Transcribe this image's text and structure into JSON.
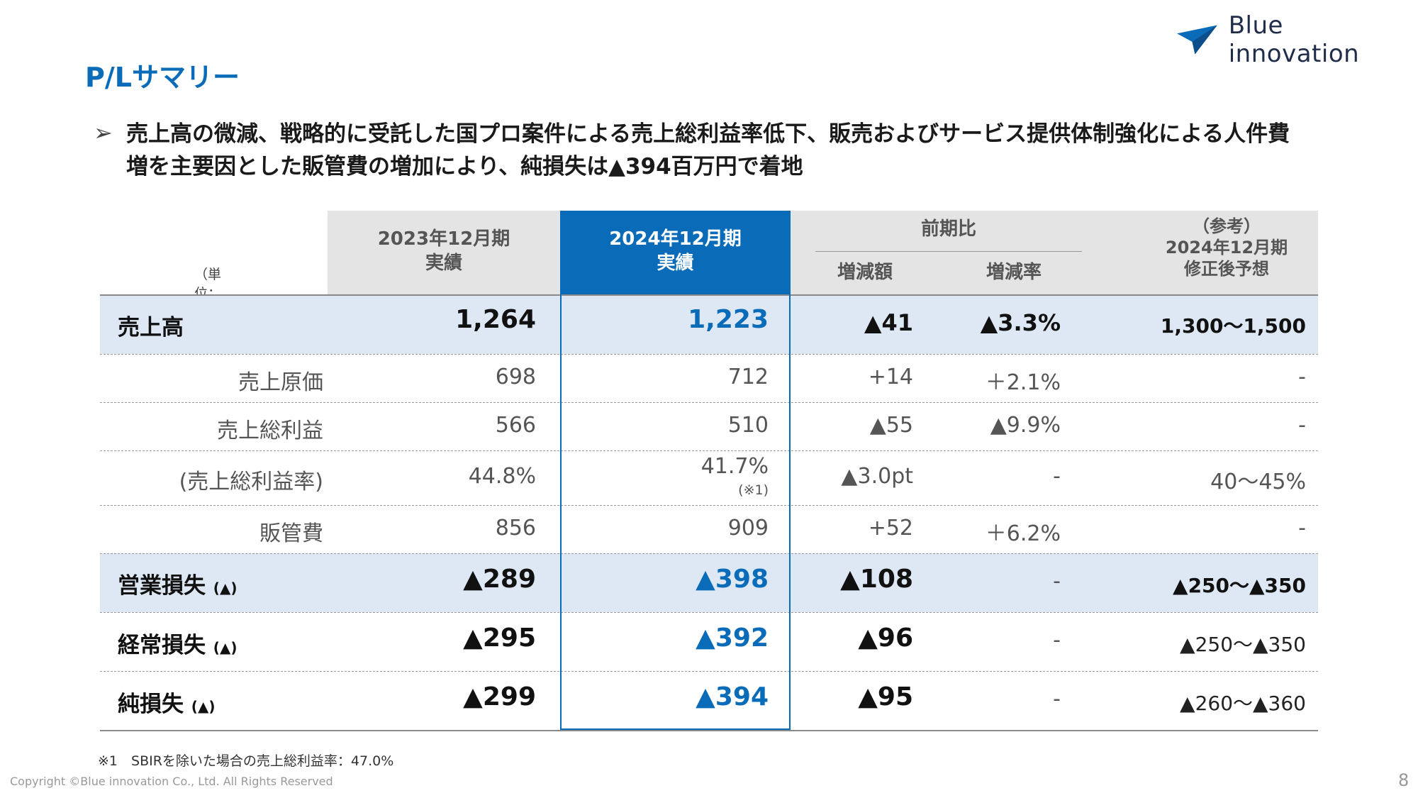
{
  "header": {
    "title": "P/Lサマリー",
    "logo_text": "Blue innovation",
    "logo_color": "#0a6cb8"
  },
  "summary": {
    "bullet": "➢",
    "text": "売上高の微減、戦略的に受託した国プロ案件による売上総利益率低下、販売およびサービス提供体制強化による人件費増を主要因とした販管費の増加により、純損失は▲394百万円で着地"
  },
  "table": {
    "unit": "（単位：百万円）",
    "col_2023": [
      "2023年12月期",
      "実績"
    ],
    "col_2024": [
      "2024年12月期",
      "実績"
    ],
    "col_yoy": "前期比",
    "col_diff": "増減額",
    "col_rate": "増減率",
    "col_forecast": [
      "（参考）",
      "2024年12月期",
      "修正後予想"
    ],
    "rows": [
      {
        "label": "売上高",
        "v2023": "1,264",
        "v2024": "1,223",
        "diff": "▲41",
        "rate": "▲3.3%",
        "forecast": "1,300〜1,500"
      },
      {
        "label": "売上原価",
        "v2023": "698",
        "v2024": "712",
        "diff": "+14",
        "rate": "＋2.1%",
        "forecast": "-"
      },
      {
        "label": "売上総利益",
        "v2023": "566",
        "v2024": "510",
        "diff": "▲55",
        "rate": "▲9.9%",
        "forecast": "-"
      },
      {
        "label": "(売上総利益率)",
        "v2023": "44.8%",
        "v2024": "41.7%",
        "v2024_note": "(※1)",
        "diff": "▲3.0pt",
        "rate": "-",
        "forecast": "40〜45%"
      },
      {
        "label": "販管費",
        "v2023": "856",
        "v2024": "909",
        "diff": "+52",
        "rate": "＋6.2%",
        "forecast": "-"
      },
      {
        "label": "営業損失",
        "label_suffix": "(▲)",
        "v2023": "▲289",
        "v2024": "▲398",
        "diff": "▲108",
        "rate": "-",
        "forecast": "▲250〜▲350"
      },
      {
        "label": "経常損失",
        "label_suffix": "(▲)",
        "v2023": "▲295",
        "v2024": "▲392",
        "diff": "▲96",
        "rate": "-",
        "forecast": "▲250〜▲350"
      },
      {
        "label": "純損失",
        "label_suffix": "(▲)",
        "v2023": "▲299",
        "v2024": "▲394",
        "diff": "▲95",
        "rate": "-",
        "forecast": "▲260〜▲360"
      }
    ]
  },
  "footnote": "※1　SBIRを除いた場合の売上総利益率：47.0%",
  "footer": {
    "copyright": "Copyright ©Blue innovation Co., Ltd. All Rights Reserved",
    "page_number": "8"
  }
}
